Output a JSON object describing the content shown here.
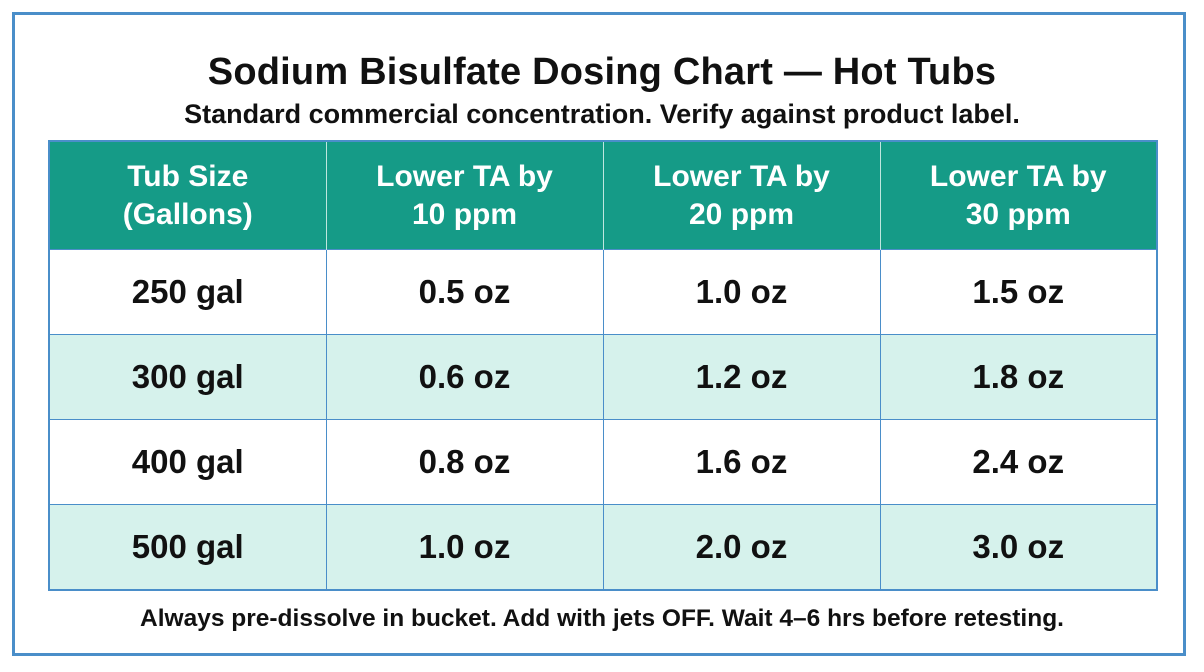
{
  "title": "Sodium Bisulfate Dosing Chart — Hot Tubs",
  "subtitle": "Standard commercial concentration. Verify against product label.",
  "table": {
    "headers": [
      [
        "Tub Size",
        "(Gallons)"
      ],
      [
        "Lower TA by",
        "10 ppm"
      ],
      [
        "Lower TA by",
        "20 ppm"
      ],
      [
        "Lower TA by",
        "30 ppm"
      ]
    ],
    "rows": [
      [
        "250 gal",
        "0.5 oz",
        "1.0 oz",
        "1.5 oz"
      ],
      [
        "300 gal",
        "0.6 oz",
        "1.2 oz",
        "1.8 oz"
      ],
      [
        "400 gal",
        "0.8 oz",
        "1.6 oz",
        "2.4 oz"
      ],
      [
        "500 gal",
        "1.0 oz",
        "2.0 oz",
        "3.0 oz"
      ]
    ]
  },
  "footnote": "Always pre-dissolve in bucket. Add with jets OFF. Wait 4–6 hrs before retesting.",
  "colors": {
    "header_bg": "#159b87",
    "alt_row_bg": "#d6f2ec",
    "border": "#4a8ec9"
  }
}
